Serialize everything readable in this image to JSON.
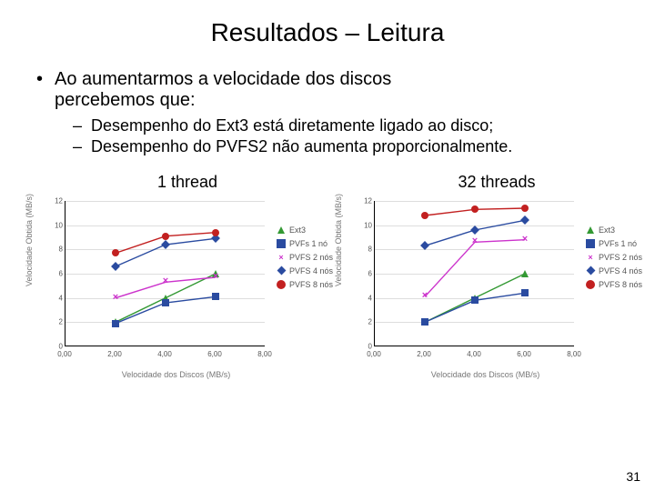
{
  "title": "Resultados – Leitura",
  "bullet_main_1": "Ao aumentarmos a velocidade dos discos",
  "bullet_main_2": "percebemos que:",
  "sub_1": "Desempenho do Ext3 está diretamente ligado ao disco;",
  "sub_2": "Desempenho do PVFS2 não aumenta proporcionalmente.",
  "page_number": "31",
  "axes": {
    "ylabel": "Velocidade Obtida (MB/s)",
    "xlabel": "Velocidade dos Discos (MB/s)",
    "ylim": [
      0,
      12
    ],
    "ytick_step": 2,
    "xlim": [
      0,
      8
    ],
    "xticks": [
      0,
      2,
      4,
      6,
      8
    ],
    "xtick_labels": [
      "0,00",
      "2,00",
      "4,00",
      "6,00",
      "8,00"
    ],
    "grid_color": "#dddddd",
    "axis_color": "#000000",
    "label_fontsize": 9,
    "tick_fontsize": 8,
    "background_color": "#ffffff"
  },
  "series_style": {
    "Ext3": {
      "color": "#339933",
      "marker": "triangle"
    },
    "PVFs 1 nó": {
      "color": "#2a4ba0",
      "marker": "square"
    },
    "PVFS 2 nós": {
      "color": "#cc33cc",
      "marker": "x"
    },
    "PVFS 4 nós": {
      "color": "#2a4ba0",
      "marker": "diamond"
    },
    "PVFS 8 nós": {
      "color": "#c22020",
      "marker": "circle"
    }
  },
  "legend_order": [
    "Ext3",
    "PVFs 1 nó",
    "PVFS 2 nós",
    "PVFS 4 nós",
    "PVFS 8 nós"
  ],
  "chart_left": {
    "title": "1 thread",
    "x": [
      2,
      4,
      6
    ],
    "y": {
      "Ext3": [
        2.0,
        4.0,
        6.0
      ],
      "PVFs 1 nó": [
        1.9,
        3.6,
        4.1
      ],
      "PVFS 2 nós": [
        4.0,
        5.3,
        5.7
      ],
      "PVFS 4 nós": [
        6.6,
        8.4,
        8.9
      ],
      "PVFS 8 nós": [
        7.7,
        9.1,
        9.4
      ]
    }
  },
  "chart_right": {
    "title": "32 threads",
    "x": [
      2,
      4,
      6
    ],
    "y": {
      "Ext3": [
        2.0,
        4.0,
        6.0
      ],
      "PVFs 1 nó": [
        2.0,
        3.8,
        4.4
      ],
      "PVFS 2 nós": [
        4.1,
        8.6,
        8.8
      ],
      "PVFS 4 nós": [
        8.3,
        9.6,
        10.4
      ],
      "PVFS 8 nós": [
        10.8,
        11.3,
        11.4
      ]
    }
  }
}
